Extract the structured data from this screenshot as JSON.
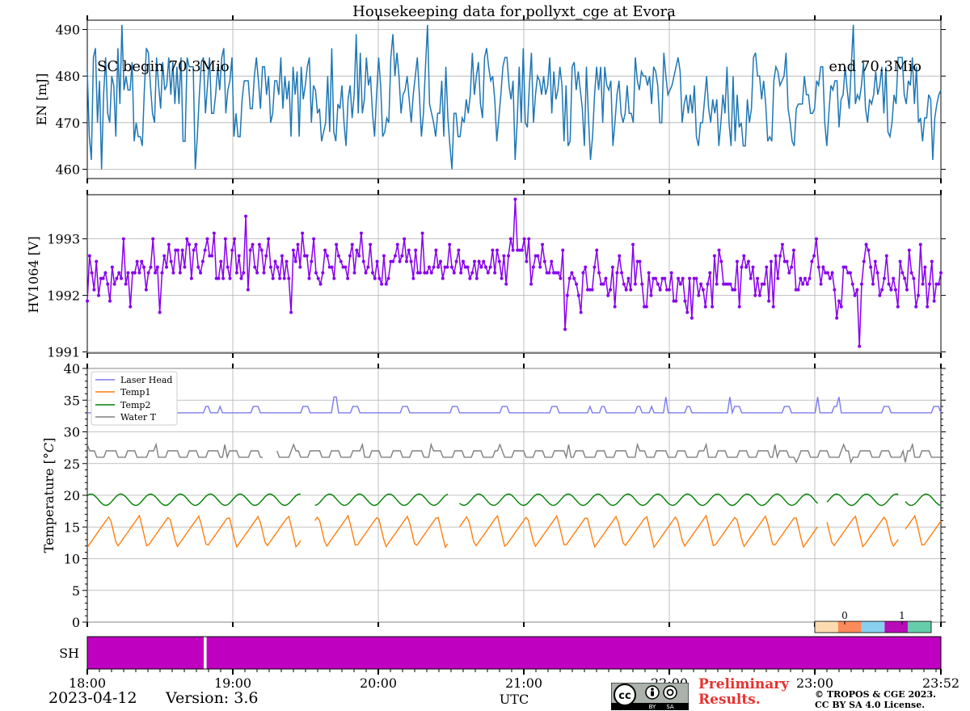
{
  "title": "Housekeeping data for pollyxt_cge at Evora",
  "date": "2023-04-12",
  "version": "Version: 3.6",
  "x_axis": {
    "label": "UTC",
    "ticks": [
      "18:00",
      "19:00",
      "20:00",
      "21:00",
      "22:00",
      "23:00",
      "23:52"
    ],
    "tick_hours": [
      18,
      19,
      20,
      21,
      22,
      23,
      23.8667
    ],
    "range_hours": [
      18,
      23.8667
    ]
  },
  "footer": {
    "preliminary_line1": "Preliminary",
    "preliminary_line2": "Results.",
    "copyright_line1": "© TROPOS & CGE 2023.",
    "copyright_line2": "CC BY SA 4.0 License.",
    "cc_text": "cc",
    "cc_by": "BY",
    "cc_sa": "SA"
  },
  "colors": {
    "energy": "#1f77b4",
    "hv": "#8800ee",
    "laser_head": "#7b7bee",
    "temp1": "#ff7f0e",
    "temp2": "#008000",
    "water_t": "#808080",
    "shutter": "#c000c0",
    "preliminary": "#e8322f"
  },
  "chart_data": [
    {
      "type": "line",
      "panel": "energy",
      "ylabel": "EN [mJ]",
      "ylim": [
        458,
        492
      ],
      "yticks": [
        460,
        470,
        480,
        490
      ],
      "annotations": [
        "SC begin 70.3Mio",
        "end 70.3Mio"
      ],
      "x_range": [
        18,
        23.8667
      ],
      "series": [
        {
          "values": [
            481,
            467,
            462,
            484,
            486,
            470,
            479,
            460,
            476,
            484,
            472,
            470,
            480,
            478,
            467,
            486,
            474,
            491,
            477,
            480,
            477,
            477,
            483,
            466,
            470,
            467,
            467,
            465,
            477,
            486,
            485,
            478,
            472,
            470,
            484,
            478,
            473,
            483,
            477,
            478,
            484,
            476,
            483,
            474,
            482,
            474,
            484,
            466,
            466,
            484,
            482,
            482,
            482,
            460,
            467,
            476,
            483,
            484,
            472,
            478,
            484,
            472,
            472,
            476,
            482,
            477,
            484,
            486,
            472,
            477,
            479,
            484,
            467,
            472,
            467,
            467,
            475,
            479,
            479,
            479,
            473,
            473,
            480,
            484,
            479,
            473,
            482,
            482,
            476,
            480,
            470,
            472,
            479,
            479,
            476,
            484,
            473,
            480,
            475,
            479,
            467,
            482,
            476,
            481,
            467,
            482,
            475,
            478,
            482,
            484,
            470,
            478,
            477,
            472,
            473,
            466,
            468,
            470,
            480,
            468,
            486,
            468,
            466,
            474,
            473,
            478,
            470,
            465,
            475,
            478,
            471,
            476,
            489,
            472,
            485,
            472,
            475,
            484,
            478,
            480,
            472,
            467,
            476,
            484,
            478,
            467,
            468,
            471,
            470,
            484,
            489,
            480,
            485,
            480,
            472,
            476,
            477,
            480,
            475,
            470,
            476,
            480,
            484,
            476,
            467,
            472,
            482,
            491,
            474,
            472,
            470,
            467,
            472,
            472,
            479,
            467,
            482,
            471,
            465,
            460,
            472,
            472,
            467,
            467,
            471,
            470,
            475,
            472,
            476,
            485,
            476,
            480,
            483,
            474,
            471,
            484,
            486,
            482,
            479,
            480,
            475,
            466,
            471,
            476,
            482,
            484,
            484,
            478,
            475,
            479,
            462,
            470,
            482,
            470,
            486,
            470,
            469,
            478,
            485,
            470,
            476,
            480,
            479,
            476,
            480,
            476,
            478,
            484,
            472,
            481,
            475,
            477,
            482,
            478,
            466,
            478,
            465,
            466,
            482,
            483,
            477,
            481,
            477,
            473,
            465,
            482,
            471,
            462,
            467,
            476,
            482,
            477,
            482,
            470,
            482,
            478,
            477,
            479,
            465,
            470,
            476,
            479,
            472,
            470,
            472,
            478,
            472,
            472,
            470,
            484,
            479,
            477,
            481,
            480,
            480,
            478,
            480,
            474,
            482,
            481,
            478,
            470,
            470,
            485,
            480,
            476,
            477,
            478,
            480,
            482,
            484,
            481,
            470,
            474,
            476,
            472,
            476,
            472,
            478,
            467,
            465,
            470,
            470,
            475,
            480,
            473,
            470,
            475,
            472,
            475,
            465,
            470,
            476,
            472,
            482,
            470,
            465,
            480,
            466,
            476,
            469,
            470,
            465,
            465,
            475,
            470,
            473,
            484,
            485,
            480,
            480,
            475,
            479,
            474,
            466,
            467,
            466,
            479,
            482,
            481,
            478,
            479,
            480,
            485,
            473,
            470,
            466,
            465,
            473,
            474,
            474,
            474,
            480,
            476,
            476,
            472,
            472,
            473,
            479,
            478,
            482,
            482,
            470,
            465,
            472,
            478,
            477,
            479,
            479,
            469,
            475,
            476,
            482,
            477,
            473,
            482,
            491,
            474,
            476,
            475,
            478,
            483,
            473,
            470,
            475,
            474,
            476,
            481,
            476,
            478,
            482,
            472,
            482,
            468,
            467,
            470,
            476,
            474,
            484,
            484,
            484,
            476,
            474,
            479,
            478,
            484,
            474,
            482,
            470,
            471,
            466,
            471,
            471,
            476,
            475,
            462,
            471,
            474,
            476,
            477
          ]
        }
      ]
    },
    {
      "type": "line",
      "panel": "hv",
      "ylabel": "HV1064 [V]",
      "ylim": [
        1990.98,
        1993.78
      ],
      "yticks": [
        1991,
        1992,
        1993
      ],
      "x_range": [
        18,
        23.8667
      ],
      "series": [
        {
          "values": [
            1991.9,
            1992.7,
            1992.4,
            1992.1,
            1992.6,
            1992.0,
            1992.3,
            1992.3,
            1992.4,
            1992.2,
            1991.9,
            1992.5,
            1992.2,
            1992.3,
            1992.4,
            1992.3,
            1993.0,
            1992.2,
            1992.4,
            1991.8,
            1992.4,
            1992.4,
            1992.6,
            1992.4,
            1992.6,
            1992.5,
            1992.1,
            1992.4,
            1992.5,
            1993.0,
            1992.4,
            1992.5,
            1991.7,
            1992.4,
            1992.7,
            1992.5,
            1992.9,
            1992.6,
            1992.4,
            1992.8,
            1992.8,
            1992.4,
            1992.8,
            1992.5,
            1993.0,
            1992.9,
            1992.3,
            1992.8,
            1992.9,
            1992.5,
            1992.4,
            1992.6,
            1992.8,
            1993.0,
            1992.7,
            1992.7,
            1993.1,
            1992.3,
            1992.3,
            1992.6,
            1992.3,
            1993.0,
            1992.5,
            1992.3,
            1992.8,
            1993.0,
            1992.4,
            1992.7,
            1992.3,
            1992.4,
            1993.4,
            1992.1,
            1992.8,
            1992.9,
            1992.5,
            1992.4,
            1992.9,
            1992.8,
            1992.4,
            1992.7,
            1993.0,
            1992.5,
            1992.3,
            1992.6,
            1992.5,
            1992.3,
            1992.7,
            1992.3,
            1992.6,
            1992.3,
            1991.7,
            1992.8,
            1992.6,
            1992.9,
            1992.5,
            1993.1,
            1992.7,
            1992.7,
            1992.3,
            1992.6,
            1993.0,
            1992.4,
            1992.3,
            1992.2,
            1992.4,
            1992.8,
            1992.7,
            1992.5,
            1992.5,
            1992.3,
            1992.9,
            1992.7,
            1992.6,
            1992.5,
            1992.5,
            1992.3,
            1992.7,
            1992.9,
            1992.4,
            1992.8,
            1992.7,
            1993.1,
            1992.6,
            1992.4,
            1992.5,
            1992.9,
            1992.4,
            1992.3,
            1992.6,
            1992.3,
            1992.2,
            1992.7,
            1992.2,
            1992.3,
            1992.6,
            1992.6,
            1992.7,
            1992.9,
            1992.6,
            1992.7,
            1993.0,
            1992.6,
            1992.8,
            1992.6,
            1992.3,
            1992.8,
            1992.4,
            1992.4,
            1993.1,
            1992.4,
            1992.4,
            1992.5,
            1992.4,
            1992.5,
            1992.8,
            1992.5,
            1992.6,
            1992.3,
            1992.5,
            1992.5,
            1992.9,
            1992.5,
            1992.4,
            1992.6,
            1992.8,
            1992.4,
            1992.6,
            1992.5,
            1992.5,
            1992.3,
            1992.4,
            1992.6,
            1992.3,
            1992.6,
            1992.5,
            1992.6,
            1992.5,
            1992.4,
            1992.5,
            1992.8,
            1992.4,
            1992.8,
            1992.6,
            1992.3,
            1992.7,
            1992.2,
            1992.7,
            1993.0,
            1992.8,
            1993.7,
            1992.8,
            1992.8,
            1992.8,
            1993.0,
            1992.6,
            1993.0,
            1992.2,
            1992.5,
            1992.7,
            1992.7,
            1992.5,
            1992.9,
            1992.6,
            1992.4,
            1992.4,
            1992.6,
            1992.4,
            1992.4,
            1992.4,
            1992.3,
            1992.8,
            1991.4,
            1992.0,
            1992.3,
            1992.4,
            1992.3,
            1992.2,
            1992.0,
            1991.7,
            1992.4,
            1992.5,
            1992.1,
            1992.1,
            1992.1,
            1992.5,
            1992.8,
            1992.4,
            1992.2,
            1992.2,
            1992.3,
            1992.0,
            1992.1,
            1992.5,
            1991.8,
            1992.4,
            1992.7,
            1992.4,
            1992.2,
            1992.1,
            1992.3,
            1992.1,
            1992.9,
            1992.2,
            1992.6,
            1992.6,
            1992.2,
            1991.8,
            1991.8,
            1992.4,
            1992.0,
            1992.3,
            1992.3,
            1992.2,
            1992.1,
            1992.3,
            1992.3,
            1992.1,
            1992.1,
            1992.4,
            1991.9,
            1991.9,
            1992.3,
            1992.2,
            1992.3,
            1991.9,
            1991.7,
            1992.3,
            1991.6,
            1992.3,
            1992.3,
            1992.0,
            1992.2,
            1992.1,
            1991.8,
            1992.2,
            1992.4,
            1991.8,
            1992.7,
            1992.2,
            1992.8,
            1992.6,
            1992.2,
            1992.2,
            1992.2,
            1992.2,
            1992.1,
            1992.1,
            1992.6,
            1991.8,
            1992.5,
            1992.7,
            1992.5,
            1992.6,
            1992.3,
            1992.5,
            1992.0,
            1992.3,
            1992.0,
            1992.2,
            1992.2,
            1992.5,
            1991.9,
            1992.6,
            1991.8,
            1992.7,
            1992.3,
            1992.7,
            1992.9,
            1992.6,
            1992.6,
            1992.4,
            1992.5,
            1992.8,
            1992.1,
            1992.1,
            1992.3,
            1992.2,
            1992.3,
            1992.2,
            1992.3,
            1992.6,
            1992.7,
            1993.0,
            1992.5,
            1992.2,
            1992.5,
            1992.4,
            1992.4,
            1992.3,
            1992.4,
            1992.1,
            1991.6,
            1991.9,
            1991.8,
            1992.5,
            1992.5,
            1992.4,
            1992.4,
            1992.2,
            1992.0,
            1992.1,
            1991.1,
            1992.2,
            1992.6,
            1992.9,
            1992.8,
            1992.5,
            1992.2,
            1992.6,
            1992.4,
            1992.0,
            1992.1,
            1992.3,
            1992.7,
            1992.2,
            1992.1,
            1992.3,
            1992.1,
            1991.8,
            1992.6,
            1992.4,
            1992.3,
            1992.1,
            1992.8,
            1992.4,
            1992.3,
            1991.8,
            1992.0,
            1992.9,
            1992.2,
            1992.5,
            1991.8,
            1992.2,
            1992.6,
            1991.9,
            1992.2,
            1992.2,
            1992.4
          ]
        }
      ]
    },
    {
      "type": "line",
      "panel": "temperature",
      "ylabel": "Temperature [$^\\circ C$]",
      "ylim": [
        0,
        40
      ],
      "yticks": [
        0,
        5,
        10,
        15,
        20,
        25,
        30,
        35,
        40
      ],
      "x_range": [
        18,
        23.8667
      ],
      "legend_position": "top-left",
      "series": [
        {
          "name": "Laser Head",
          "pattern": "base 33, periodic 1-step rises to 34, spikes to 35 near 18:30, 19:40, 22:00, 22:25, 23:05",
          "base": 33
        },
        {
          "name": "Temp1",
          "pattern": "sawtooth between 11.5 and 16.8, period ~12 min, gaps near 19:30, 20:30, 23:03, 23:35"
        },
        {
          "name": "Temp2",
          "pattern": "oscillation between 18.5 and 20.3, period ~12 min, gaps near 19:30, 23:03"
        },
        {
          "name": "Water T",
          "pattern": "steps between 26 and 27 with spikes to 28, gap near 19:15, dips to 25.2 after 22:45"
        }
      ]
    },
    {
      "type": "heatmap",
      "panel": "shutter",
      "ylabel": "SH",
      "x_range": [
        18,
        23.8667
      ],
      "blocks": [
        {
          "from": 18.0,
          "to": 18.8,
          "state": "closed"
        },
        {
          "from": 18.8,
          "to": 18.82,
          "state": "open"
        },
        {
          "from": 18.82,
          "to": 23.8667,
          "state": "closed"
        }
      ],
      "colorbar": {
        "ticks": [
          "0",
          "1"
        ],
        "colors": [
          "#fddbb0",
          "#fb8a5a",
          "#89cff0",
          "#b80cb8",
          "#66cdaa"
        ]
      }
    }
  ]
}
